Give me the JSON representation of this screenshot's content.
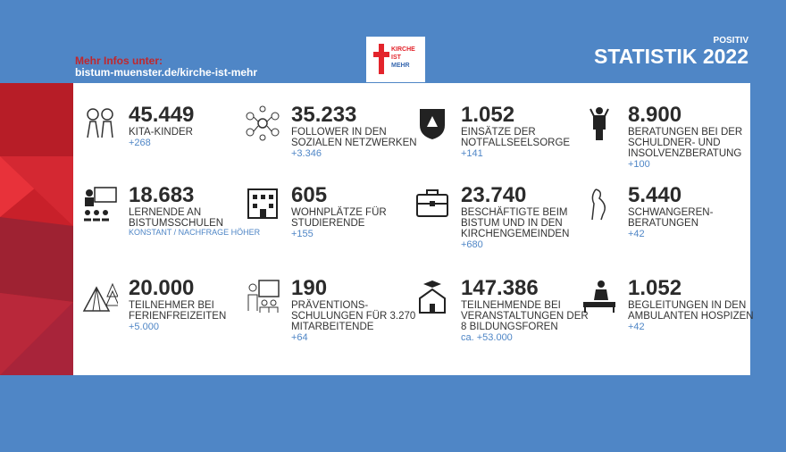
{
  "header": {
    "info_line1": "Mehr Infos unter:",
    "info_line2": "bistum-muenster.de/kirche-ist-mehr",
    "pretitle": "POSITIV",
    "title": "STATISTIK 2022"
  },
  "logo": {
    "line1": "KIRCHE",
    "line2": "IST",
    "line3": "MEHR"
  },
  "colors": {
    "blue": "#4f86c6",
    "red": "#e3242b",
    "accent": "#4f86c6"
  },
  "stats": [
    {
      "icon": "children-icon",
      "number": "45.449",
      "label": "KITA-KINDER",
      "change": "+268"
    },
    {
      "icon": "network-icon",
      "number": "35.233",
      "label": "FOLLOWER IN DEN SOZIALEN NETZWERKEN",
      "change": "+3.346"
    },
    {
      "icon": "shield-badge-icon",
      "number": "1.052",
      "label": "EINSÄTZE DER NOTFALLSEELSORGE",
      "change": "+141"
    },
    {
      "icon": "stressed-person-icon",
      "number": "8.900",
      "label": "BERATUNGEN BEI DER SCHULDNER- UND INSOLVENZBERATUNG",
      "change": "+100"
    },
    {
      "icon": "classroom-icon",
      "number": "18.683",
      "label": "LERNENDE AN BISTUMSSCHULEN",
      "change": "KONSTANT / NACHFRAGE HÖHER"
    },
    {
      "icon": "building-icon",
      "number": "605",
      "label": "WOHNPLÄTZE FÜR STUDIERENDE",
      "change": "+155"
    },
    {
      "icon": "briefcase-icon",
      "number": "23.740",
      "label": "BESCHÄFTIGTE BEIM BISTUM UND IN DEN KIRCHENGEMEINDEN",
      "change": "+680"
    },
    {
      "icon": "pregnant-woman-icon",
      "number": "5.440",
      "label": "SCHWANGEREN-BERATUNGEN",
      "change": "+42"
    },
    {
      "icon": "tent-icon",
      "number": "20.000",
      "label": "TEILNEHMER BEI FERIENFREIZEITEN",
      "change": "+5.000"
    },
    {
      "icon": "presentation-icon",
      "number": "190",
      "label": "PRÄVENTIONS-SCHULUNGEN FÜR 3.270 MITARBEITENDE",
      "change": "+64"
    },
    {
      "icon": "graduation-house-icon",
      "number": "147.386",
      "label": "TEILNEHMENDE BEI VERANSTALTUNGEN DER 8 BILDUNGSFOREN",
      "change": "ca. +53.000"
    },
    {
      "icon": "care-bed-icon",
      "number": "1.052",
      "label": "BEGLEITUNGEN IN DEN AMBULANTEN HOSPIZEN",
      "change": "+42"
    }
  ]
}
